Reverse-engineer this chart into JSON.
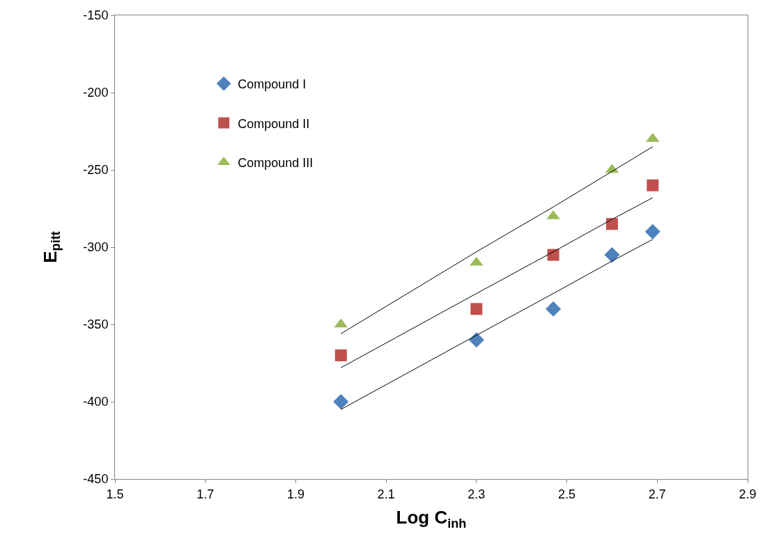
{
  "chart_data": {
    "type": "scatter",
    "xlabel": "Log C$_{inh}$",
    "ylabel": "E$_{pitt}$",
    "x": [
      2.0,
      2.3,
      2.47,
      2.6,
      2.69
    ],
    "series": [
      {
        "name": "Compound I",
        "color": "#4f81bd",
        "marker": "diamond",
        "values": [
          -400,
          -360,
          -340,
          -305,
          -290
        ]
      },
      {
        "name": "Compound II",
        "color": "#c0504d",
        "marker": "square",
        "values": [
          -370,
          -340,
          -305,
          -285,
          -260
        ]
      },
      {
        "name": "Compound III",
        "color": "#9bbb59",
        "marker": "triangle",
        "values": [
          -350,
          -310,
          -280,
          -250,
          -230
        ]
      },
      {
        "type": "line",
        "color": "#000000",
        "marker": "none",
        "values": [
          -405,
          -357,
          -330,
          -309,
          -295
        ]
      },
      {
        "type": "line",
        "color": "#000000",
        "marker": "none",
        "values": [
          -378,
          -330,
          -303,
          -282,
          -268
        ]
      },
      {
        "type": "line",
        "color": "#000000",
        "marker": "none",
        "values": [
          -356,
          -303,
          -274,
          -251,
          -235
        ]
      }
    ],
    "xlim": [
      1.5,
      2.9
    ],
    "xticks": [
      1.5,
      1.7,
      1.9,
      2.1,
      2.3,
      2.5,
      2.7,
      2.9
    ],
    "ylim": [
      -450,
      -150
    ],
    "yticks": [
      -450,
      -400,
      -350,
      -300,
      -250,
      -200,
      -150
    ],
    "legend": "top left"
  }
}
